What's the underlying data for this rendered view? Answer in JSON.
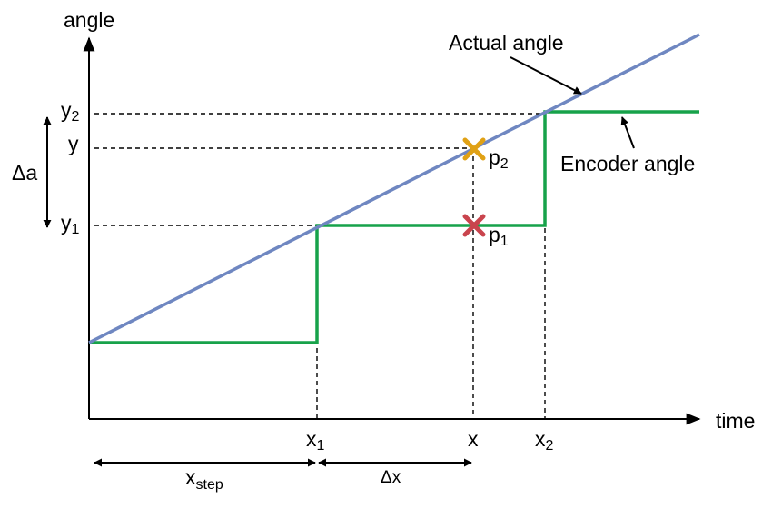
{
  "axes": {
    "y_label": "angle",
    "x_label": "time"
  },
  "annotations": {
    "actual": "Actual angle",
    "encoder": "Encoder angle"
  },
  "y_ticks": {
    "y2": {
      "base": "y",
      "sub": "2"
    },
    "y": {
      "base": "y",
      "sub": ""
    },
    "y1": {
      "base": "y",
      "sub": "1"
    }
  },
  "x_ticks": {
    "x1": {
      "base": "x",
      "sub": "1"
    },
    "x": {
      "base": "x",
      "sub": ""
    },
    "x2": {
      "base": "x",
      "sub": "2"
    }
  },
  "points": {
    "p2": {
      "base": "p",
      "sub": "2"
    },
    "p1": {
      "base": "p",
      "sub": "1"
    }
  },
  "intervals": {
    "delta_a": "Δa",
    "x_step": {
      "base": "x",
      "sub": "step"
    },
    "delta_x": "Δx"
  },
  "colors": {
    "actual_line": "#6F87C1",
    "encoder_line": "#17A24A",
    "p2_marker": "#E0A115",
    "p1_marker": "#C9444D",
    "axis": "#000000"
  }
}
